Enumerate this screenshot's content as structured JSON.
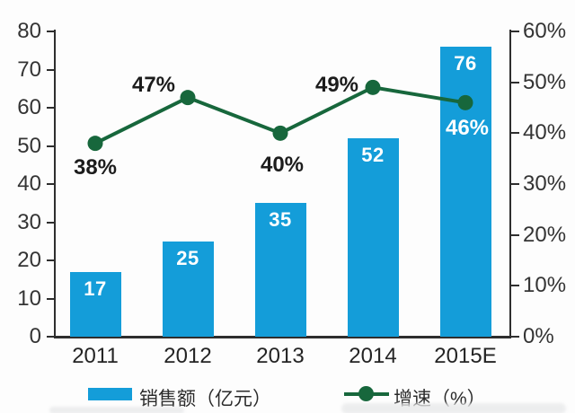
{
  "chart_data": {
    "type": "bar+line combo",
    "categories": [
      "2011",
      "2012",
      "2013",
      "2014",
      "2015E"
    ],
    "series": [
      {
        "name": "销售额（亿元）",
        "type": "bar",
        "axis": "left",
        "color": "#149dd9",
        "values": [
          17,
          25,
          35,
          52,
          76
        ],
        "data_labels": [
          "17",
          "25",
          "35",
          "52",
          "76"
        ]
      },
      {
        "name": "增速（%）",
        "type": "line",
        "axis": "right",
        "color": "#17673c",
        "values": [
          38,
          47,
          40,
          49,
          46
        ],
        "data_labels": [
          "38%",
          "47%",
          "40%",
          "49%",
          "46%"
        ]
      }
    ],
    "left_axis": {
      "min": 0,
      "max": 80,
      "step": 10,
      "tick_labels": [
        "80",
        "70",
        "60",
        "50",
        "40",
        "30",
        "20",
        "10",
        "0"
      ]
    },
    "right_axis": {
      "min": 0,
      "max": 60,
      "step": 10,
      "tick_labels": [
        "60%",
        "50%",
        "40%",
        "30%",
        "20%",
        "10%",
        "0%"
      ]
    },
    "grid": "off",
    "legend_position": "bottom",
    "title": ""
  },
  "legend": {
    "sales_label": "销售额（亿元）",
    "growth_label": "增速（%）"
  },
  "colors": {
    "bar": "#149dd9",
    "line": "#17673c",
    "text": "#242424",
    "bar_label": "#ffffff"
  }
}
